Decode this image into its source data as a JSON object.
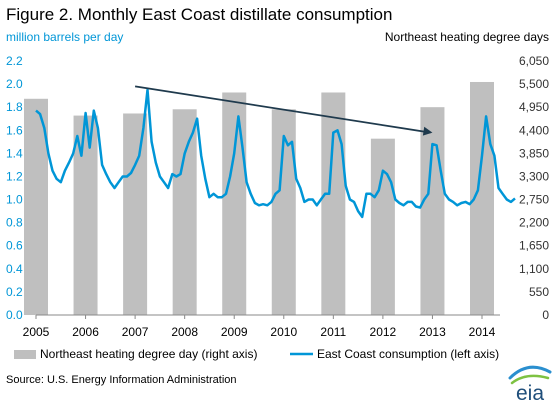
{
  "title": "Figure 2. Monthly East Coast distillate consumption",
  "source": "Source: U.S. Energy Information Administration",
  "logo_text": "eia",
  "colors": {
    "bars": "#bfbfbf",
    "line": "#0096d7",
    "arrow": "#1f3a4d",
    "left_axis_text": "#0096d7"
  },
  "chart_data": {
    "type": "bar+line",
    "title": "Figure 2. Monthly East Coast distillate consumption",
    "left_axis": {
      "label": "million barrels  per day",
      "ylim": [
        0.0,
        2.2
      ],
      "ticks": [
        "0.0",
        "0.2",
        "0.4",
        "0.6",
        "0.8",
        "1.0",
        "1.2",
        "1.4",
        "1.6",
        "1.8",
        "2.0",
        "2.2"
      ]
    },
    "right_axis": {
      "label": "Northeast  heating degree  days",
      "ylim": [
        0,
        6050
      ],
      "ticks": [
        "0",
        "550",
        "1,100",
        "1,650",
        "2,200",
        "2,750",
        "3,300",
        "3,850",
        "4,400",
        "4,950",
        "5,500",
        "6,050"
      ]
    },
    "x_ticks": [
      "2005",
      "2006",
      "2007",
      "2008",
      "2009",
      "2010",
      "2011",
      "2012",
      "2013",
      "2014"
    ],
    "bars": {
      "name": "Northeast heating degree day (right axis)",
      "years": [
        2005,
        2006,
        2007,
        2008,
        2009,
        2010,
        2011,
        2012,
        2013,
        2014
      ],
      "values": [
        5150,
        4750,
        4800,
        4900,
        5300,
        4900,
        5300,
        4200,
        4950,
        5550
      ]
    },
    "line": {
      "name": "East Coast consumption (left axis)",
      "start": "2005-01",
      "values": [
        1.77,
        1.74,
        1.62,
        1.4,
        1.25,
        1.18,
        1.15,
        1.25,
        1.32,
        1.4,
        1.55,
        1.38,
        1.75,
        1.45,
        1.77,
        1.62,
        1.3,
        1.22,
        1.15,
        1.1,
        1.15,
        1.2,
        1.2,
        1.23,
        1.3,
        1.38,
        1.62,
        1.95,
        1.5,
        1.32,
        1.2,
        1.15,
        1.1,
        1.22,
        1.2,
        1.22,
        1.4,
        1.5,
        1.58,
        1.7,
        1.38,
        1.18,
        1.02,
        1.05,
        1.02,
        1.02,
        1.05,
        1.2,
        1.4,
        1.72,
        1.45,
        1.15,
        1.05,
        0.97,
        0.95,
        0.96,
        0.95,
        0.98,
        1.05,
        1.08,
        1.55,
        1.47,
        1.5,
        1.18,
        1.1,
        0.98,
        1.0,
        1.0,
        0.95,
        1.0,
        1.05,
        1.05,
        1.58,
        1.6,
        1.48,
        1.12,
        1.0,
        0.98,
        0.9,
        0.85,
        1.05,
        1.05,
        1.02,
        1.08,
        1.25,
        1.22,
        1.15,
        1.0,
        0.97,
        0.95,
        0.98,
        0.98,
        0.94,
        0.93,
        1.0,
        1.05,
        1.48,
        1.47,
        1.25,
        1.05,
        1.0,
        0.98,
        0.95,
        0.97,
        0.98,
        0.96,
        1.0,
        1.08,
        1.38,
        1.72,
        1.48,
        1.38,
        1.1,
        1.05,
        1.0,
        0.98,
        1.01
      ]
    },
    "trend_arrow": {
      "from": {
        "date": "2007-01",
        "value": 1.98
      },
      "to": {
        "date": "2013-01",
        "value": 1.58
      }
    },
    "legend_position": "bottom"
  }
}
